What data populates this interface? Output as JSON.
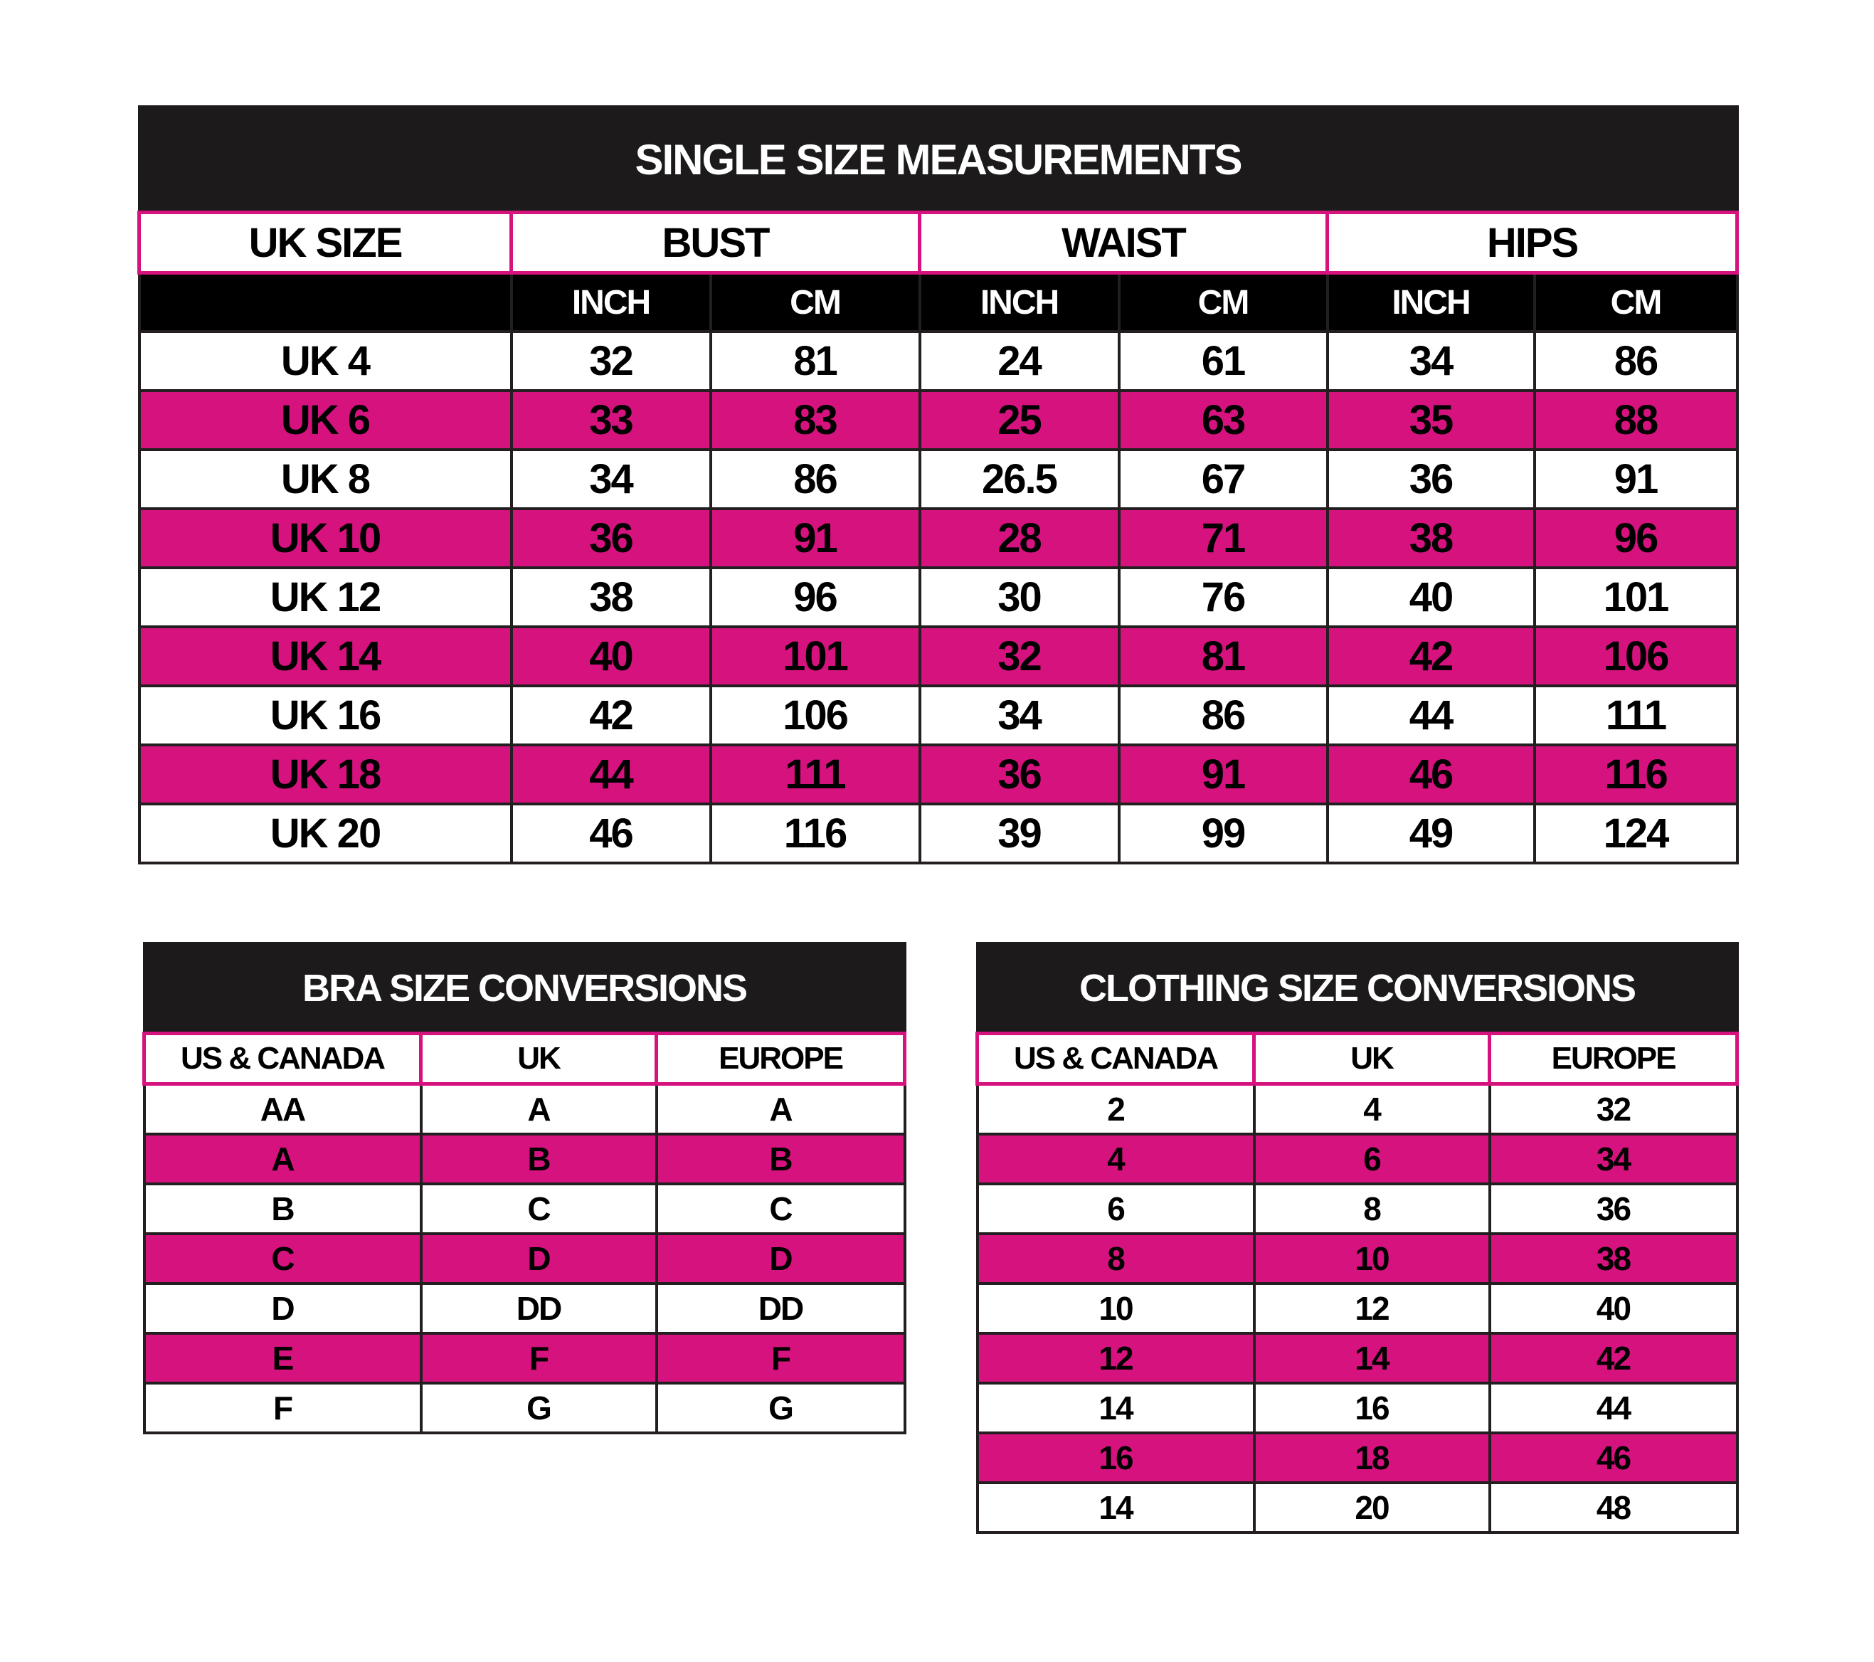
{
  "colors": {
    "header_band": "#1c1a1b",
    "pink": "#d6127e",
    "border": "#231f20"
  },
  "single_size": {
    "title": "SINGLE SIZE MEASUREMENTS",
    "groups": [
      "UK SIZE",
      "BUST",
      "WAIST",
      "HIPS"
    ],
    "units": [
      "",
      "INCH",
      "CM",
      "INCH",
      "CM",
      "INCH",
      "CM"
    ],
    "rows": [
      [
        "UK 4",
        "32",
        "81",
        "24",
        "61",
        "34",
        "86"
      ],
      [
        "UK 6",
        "33",
        "83",
        "25",
        "63",
        "35",
        "88"
      ],
      [
        "UK 8",
        "34",
        "86",
        "26.5",
        "67",
        "36",
        "91"
      ],
      [
        "UK 10",
        "36",
        "91",
        "28",
        "71",
        "38",
        "96"
      ],
      [
        "UK 12",
        "38",
        "96",
        "30",
        "76",
        "40",
        "101"
      ],
      [
        "UK 14",
        "40",
        "101",
        "32",
        "81",
        "42",
        "106"
      ],
      [
        "UK 16",
        "42",
        "106",
        "34",
        "86",
        "44",
        "111"
      ],
      [
        "UK 18",
        "44",
        "111",
        "36",
        "91",
        "46",
        "116"
      ],
      [
        "UK 20",
        "46",
        "116",
        "39",
        "99",
        "49",
        "124"
      ]
    ]
  },
  "bra": {
    "title": "BRA SIZE CONVERSIONS",
    "headers": [
      "US & CANADA",
      "UK",
      "EUROPE"
    ],
    "rows": [
      [
        "AA",
        "A",
        "A"
      ],
      [
        "A",
        "B",
        "B"
      ],
      [
        "B",
        "C",
        "C"
      ],
      [
        "C",
        "D",
        "D"
      ],
      [
        "D",
        "DD",
        "DD"
      ],
      [
        "E",
        "F",
        "F"
      ],
      [
        "F",
        "G",
        "G"
      ]
    ]
  },
  "clothing": {
    "title": "CLOTHING SIZE CONVERSIONS",
    "headers": [
      "US & CANADA",
      "UK",
      "EUROPE"
    ],
    "rows": [
      [
        "2",
        "4",
        "32"
      ],
      [
        "4",
        "6",
        "34"
      ],
      [
        "6",
        "8",
        "36"
      ],
      [
        "8",
        "10",
        "38"
      ],
      [
        "10",
        "12",
        "40"
      ],
      [
        "12",
        "14",
        "42"
      ],
      [
        "14",
        "16",
        "44"
      ],
      [
        "16",
        "18",
        "46"
      ],
      [
        "14",
        "20",
        "48"
      ]
    ]
  }
}
